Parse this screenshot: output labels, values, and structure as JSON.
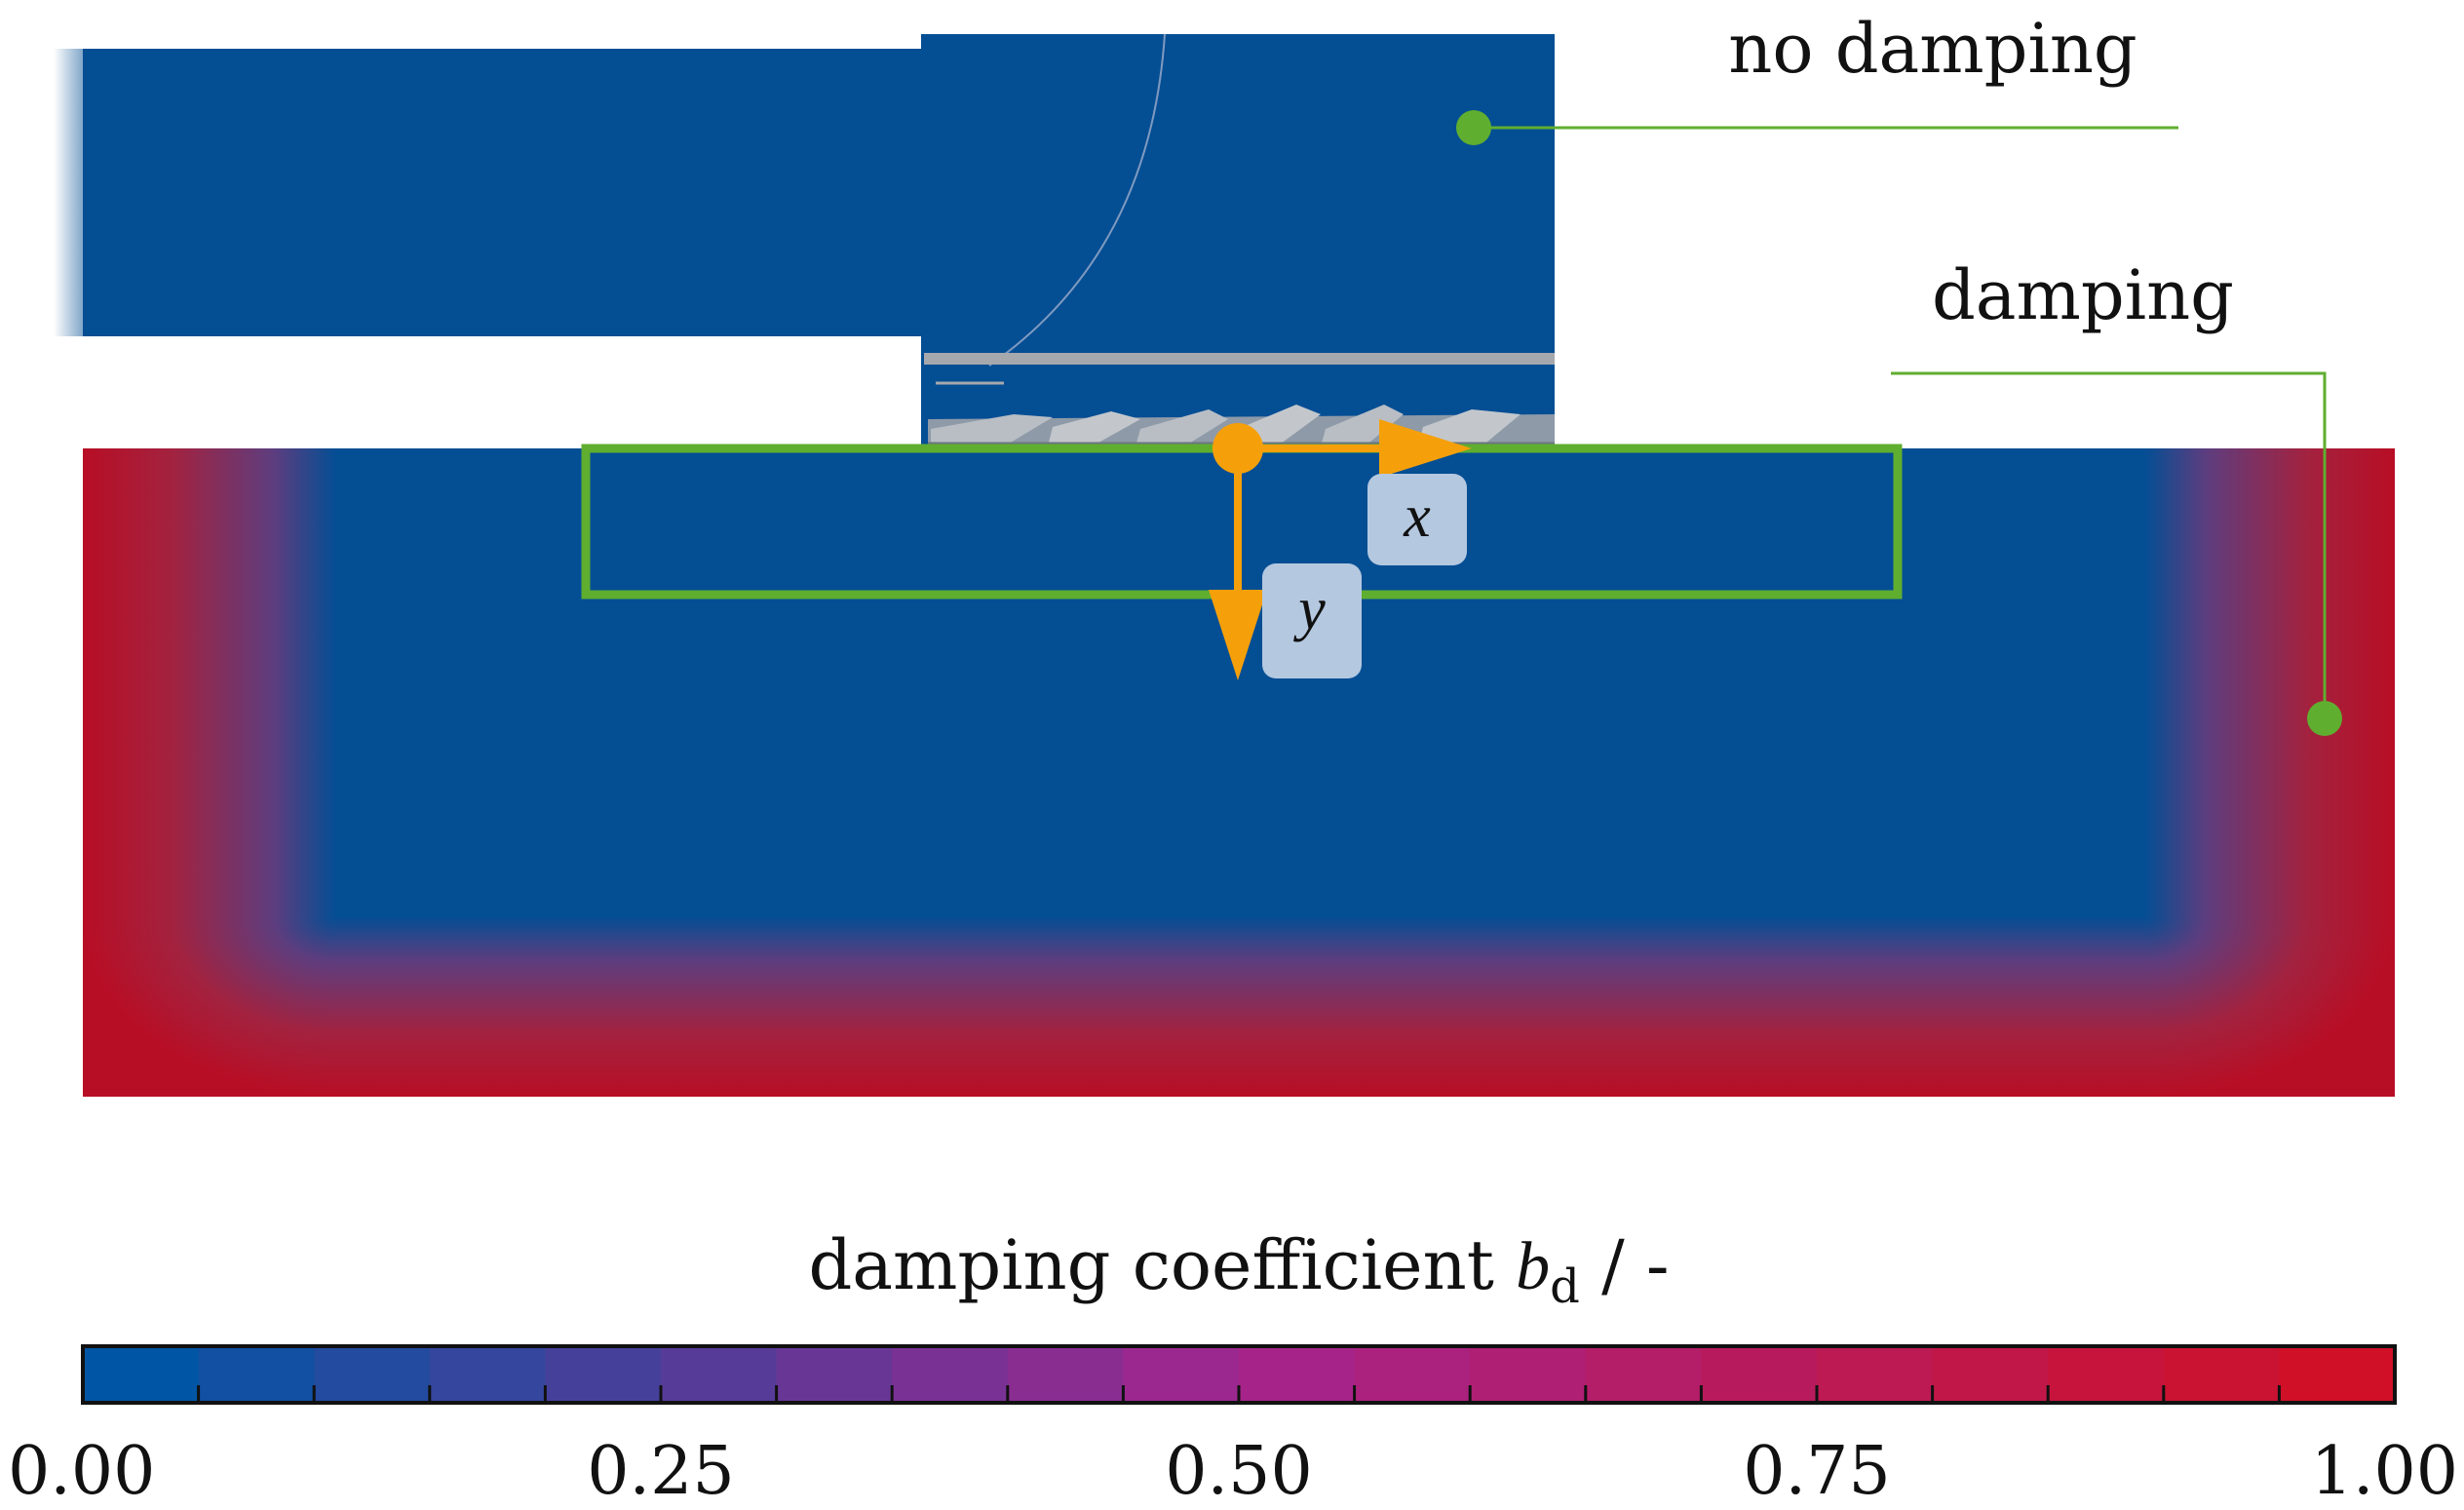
{
  "labels": {
    "no_damping": "no damping",
    "damping": "damping",
    "x_axis": "x",
    "y_axis": "y"
  },
  "colorbar": {
    "title_text": "damping coefficient ",
    "symbol": "b",
    "subscript": "d",
    "unit": " / -",
    "ticks": [
      "0.00",
      "0.25",
      "0.50",
      "0.75",
      "1.00"
    ],
    "min": 0.0,
    "max": 1.0,
    "segments": 20,
    "color_low": "#0055a4",
    "color_mid": "#a4258e",
    "color_high": "#cf1027"
  },
  "colors": {
    "domain_blue": "#044e94",
    "domain_red": "#b80e25",
    "indicator_green": "#5fae2f",
    "axis_orange": "#f5a00a",
    "axis_label_bg": "#b4c8e0",
    "geometry_gray": "#a5a8ad"
  }
}
